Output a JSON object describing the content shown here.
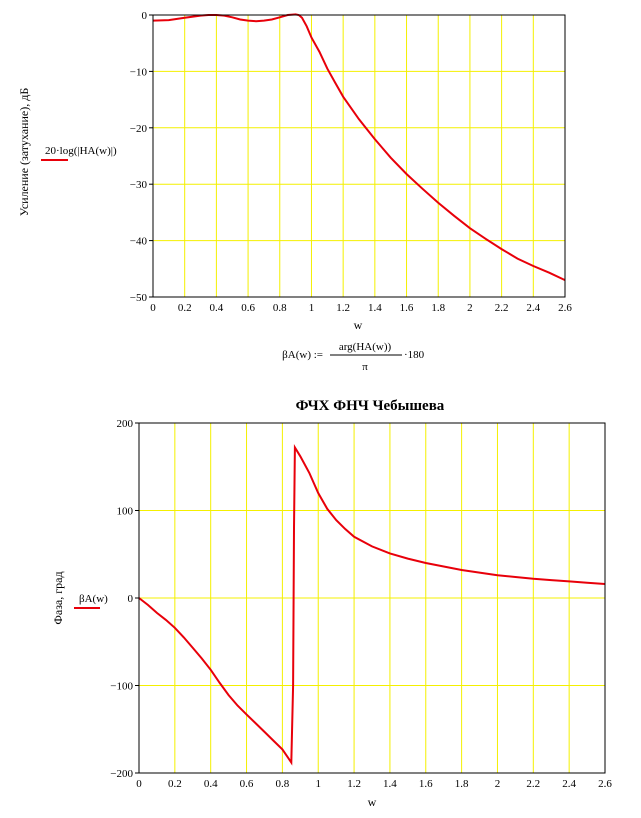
{
  "colors": {
    "grid": "#f4f000",
    "curve": "#e8000a",
    "frame": "#000000"
  },
  "chart_data": [
    {
      "type": "line",
      "title": "",
      "xlabel": "w",
      "ylabel": "Усиление (затухание), дБ",
      "legend": "20·log(|HA(w)|)",
      "xlim": [
        0,
        2.6
      ],
      "ylim": [
        -50,
        0
      ],
      "xticks": [
        "0",
        "0.2",
        "0.4",
        "0.6",
        "0.8",
        "1",
        "1.2",
        "1.4",
        "1.6",
        "1.8",
        "2",
        "2.2",
        "2.4",
        "2.6"
      ],
      "yticks": [
        "0",
        "−10",
        "−20",
        "−30",
        "−40",
        "−50"
      ],
      "grid": true,
      "series": [
        {
          "name": "20·log(|HA(w)|)",
          "x": [
            0,
            0.1,
            0.2,
            0.3,
            0.35,
            0.4,
            0.45,
            0.5,
            0.55,
            0.6,
            0.65,
            0.7,
            0.75,
            0.8,
            0.85,
            0.9,
            0.92,
            0.94,
            0.97,
            1.0,
            1.05,
            1.1,
            1.15,
            1.2,
            1.3,
            1.4,
            1.5,
            1.6,
            1.7,
            1.8,
            1.9,
            2.0,
            2.1,
            2.2,
            2.3,
            2.4,
            2.5,
            2.6
          ],
          "y": [
            -1.0,
            -0.9,
            -0.5,
            -0.1,
            0.0,
            0.0,
            -0.1,
            -0.4,
            -0.8,
            -1.0,
            -1.1,
            -1.0,
            -0.8,
            -0.4,
            0.0,
            0.1,
            0.0,
            -0.5,
            -2.0,
            -4.0,
            -6.5,
            -9.5,
            -12.0,
            -14.5,
            -18.5,
            -22.0,
            -25.3,
            -28.2,
            -30.8,
            -33.3,
            -35.6,
            -37.8,
            -39.7,
            -41.5,
            -43.2,
            -44.5,
            -45.7,
            -47.0
          ]
        }
      ]
    },
    {
      "type": "line",
      "title": "ФЧХ ФНЧ Чебышева",
      "xlabel": "w",
      "ylabel": "Фаза, град",
      "legend": "βA(w)",
      "xlim": [
        0,
        2.6
      ],
      "ylim": [
        -200,
        200
      ],
      "xticks": [
        "0",
        "0.2",
        "0.4",
        "0.6",
        "0.8",
        "1",
        "1.2",
        "1.4",
        "1.6",
        "1.8",
        "2",
        "2.2",
        "2.4",
        "2.6"
      ],
      "yticks": [
        "200",
        "100",
        "0",
        "−100",
        "−200"
      ],
      "grid": true,
      "series": [
        {
          "name": "βA(w)",
          "x": [
            0,
            0.05,
            0.1,
            0.15,
            0.2,
            0.25,
            0.3,
            0.35,
            0.4,
            0.45,
            0.5,
            0.55,
            0.6,
            0.65,
            0.7,
            0.75,
            0.8,
            0.83,
            0.85,
            0.86,
            0.865,
            0.87,
            0.9,
            0.95,
            1.0,
            1.05,
            1.1,
            1.15,
            1.2,
            1.3,
            1.4,
            1.5,
            1.6,
            1.7,
            1.8,
            1.9,
            2.0,
            2.1,
            2.2,
            2.3,
            2.4,
            2.5,
            2.6
          ],
          "y": [
            0,
            -8,
            -17,
            -25,
            -34,
            -45,
            -57,
            -69,
            -82,
            -97,
            -111,
            -123,
            -133,
            -143,
            -153,
            -163,
            -173,
            -182,
            -188,
            -100,
            80,
            172,
            162,
            143,
            120,
            102,
            89,
            79,
            70,
            59,
            51,
            45,
            40,
            36,
            32,
            29,
            26,
            24,
            22,
            20.5,
            19,
            17.5,
            16
          ]
        }
      ]
    }
  ],
  "formula": {
    "lhs": "βA(w) :=",
    "numerator": "arg(HA(w))",
    "denominator": "π",
    "factor": "·180"
  }
}
